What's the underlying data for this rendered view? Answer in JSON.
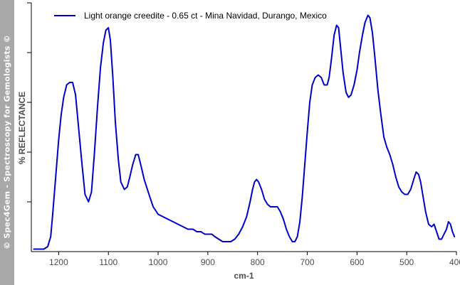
{
  "sidebar": {
    "text": "© Spec4Gem - Spectroscopy for Gemologists ©"
  },
  "colors": {
    "series": "#0000cc",
    "axis": "#000000",
    "text": "#4d4d4d",
    "sidebar": "#a8a8a8"
  },
  "chart_data": {
    "type": "line",
    "xlabel": "cm-1",
    "ylabel": "% REFLECTANCE",
    "xlim": [
      1255,
      400
    ],
    "x_reversed": true,
    "ylim": [
      0,
      100
    ],
    "y_ticks_labeled": false,
    "grid": false,
    "legend_position": "top-left",
    "x_ticks": [
      1200,
      1100,
      1000,
      900,
      800,
      700,
      600,
      500,
      400
    ],
    "y_ticks": [
      20,
      40,
      60,
      80,
      100
    ],
    "series": [
      {
        "name": "Light orange creedite - 0.65 ct - Mina Navidad, Durango, Mexico",
        "points": [
          [
            1250,
            1
          ],
          [
            1240,
            1
          ],
          [
            1230,
            1
          ],
          [
            1222,
            2
          ],
          [
            1216,
            6
          ],
          [
            1212,
            15
          ],
          [
            1206,
            30
          ],
          [
            1200,
            45
          ],
          [
            1195,
            55
          ],
          [
            1190,
            62
          ],
          [
            1184,
            67
          ],
          [
            1178,
            68
          ],
          [
            1172,
            68
          ],
          [
            1166,
            63
          ],
          [
            1160,
            50
          ],
          [
            1153,
            35
          ],
          [
            1147,
            23
          ],
          [
            1140,
            20
          ],
          [
            1134,
            24
          ],
          [
            1128,
            40
          ],
          [
            1122,
            58
          ],
          [
            1116,
            74
          ],
          [
            1110,
            84
          ],
          [
            1105,
            89
          ],
          [
            1100,
            90
          ],
          [
            1096,
            85
          ],
          [
            1091,
            70
          ],
          [
            1086,
            52
          ],
          [
            1080,
            37
          ],
          [
            1075,
            28
          ],
          [
            1068,
            25
          ],
          [
            1062,
            26
          ],
          [
            1057,
            30
          ],
          [
            1051,
            35
          ],
          [
            1045,
            39
          ],
          [
            1040,
            39
          ],
          [
            1035,
            35
          ],
          [
            1028,
            29
          ],
          [
            1020,
            24
          ],
          [
            1010,
            18
          ],
          [
            1000,
            15
          ],
          [
            990,
            14
          ],
          [
            980,
            13
          ],
          [
            970,
            12
          ],
          [
            960,
            11
          ],
          [
            950,
            10
          ],
          [
            940,
            9
          ],
          [
            930,
            9
          ],
          [
            922,
            8
          ],
          [
            914,
            8
          ],
          [
            906,
            7
          ],
          [
            900,
            7
          ],
          [
            892,
            7
          ],
          [
            886,
            6
          ],
          [
            878,
            5
          ],
          [
            870,
            4
          ],
          [
            862,
            4
          ],
          [
            854,
            4
          ],
          [
            846,
            5
          ],
          [
            838,
            7
          ],
          [
            830,
            10
          ],
          [
            822,
            14
          ],
          [
            815,
            20
          ],
          [
            810,
            25
          ],
          [
            806,
            28
          ],
          [
            802,
            29
          ],
          [
            798,
            28
          ],
          [
            792,
            25
          ],
          [
            786,
            21
          ],
          [
            780,
            19
          ],
          [
            774,
            18
          ],
          [
            768,
            18
          ],
          [
            760,
            18
          ],
          [
            754,
            16
          ],
          [
            748,
            13
          ],
          [
            742,
            9
          ],
          [
            736,
            6
          ],
          [
            730,
            4
          ],
          [
            725,
            4
          ],
          [
            720,
            6
          ],
          [
            715,
            12
          ],
          [
            710,
            22
          ],
          [
            705,
            35
          ],
          [
            700,
            48
          ],
          [
            695,
            60
          ],
          [
            690,
            67
          ],
          [
            684,
            70
          ],
          [
            678,
            71
          ],
          [
            672,
            70
          ],
          [
            666,
            67
          ],
          [
            660,
            67
          ],
          [
            656,
            70
          ],
          [
            651,
            78
          ],
          [
            646,
            87
          ],
          [
            641,
            91
          ],
          [
            637,
            90
          ],
          [
            633,
            82
          ],
          [
            628,
            72
          ],
          [
            622,
            64
          ],
          [
            617,
            62
          ],
          [
            612,
            63
          ],
          [
            606,
            67
          ],
          [
            600,
            73
          ],
          [
            595,
            80
          ],
          [
            589,
            87
          ],
          [
            584,
            92
          ],
          [
            578,
            95
          ],
          [
            574,
            94
          ],
          [
            569,
            88
          ],
          [
            564,
            78
          ],
          [
            558,
            65
          ],
          [
            552,
            55
          ],
          [
            546,
            46
          ],
          [
            540,
            42
          ],
          [
            534,
            39
          ],
          [
            528,
            35
          ],
          [
            522,
            30
          ],
          [
            516,
            26
          ],
          [
            510,
            24
          ],
          [
            504,
            23
          ],
          [
            498,
            23
          ],
          [
            492,
            25
          ],
          [
            486,
            29
          ],
          [
            481,
            32
          ],
          [
            476,
            31
          ],
          [
            472,
            28
          ],
          [
            467,
            22
          ],
          [
            462,
            16
          ],
          [
            456,
            11
          ],
          [
            450,
            10
          ],
          [
            445,
            11
          ],
          [
            440,
            8
          ],
          [
            435,
            5
          ],
          [
            430,
            5
          ],
          [
            425,
            7
          ],
          [
            420,
            9
          ],
          [
            416,
            12
          ],
          [
            412,
            11
          ],
          [
            408,
            8
          ],
          [
            404,
            6
          ]
        ]
      }
    ]
  }
}
